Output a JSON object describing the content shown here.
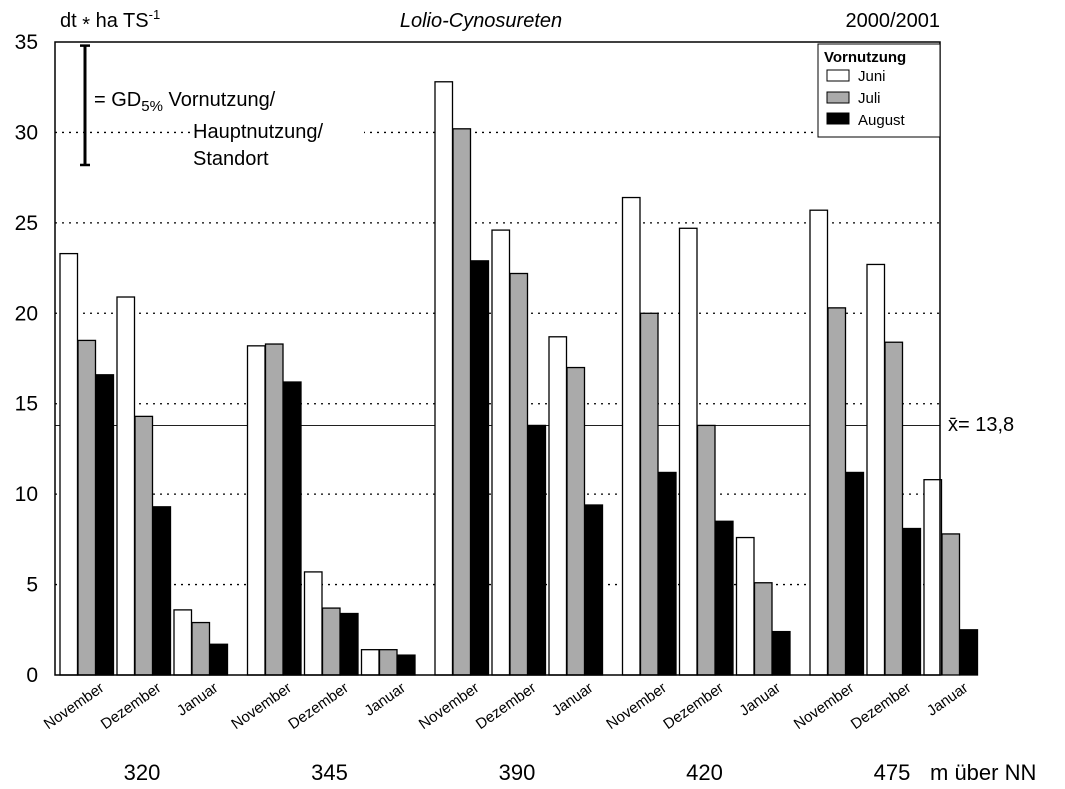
{
  "chart_data": {
    "type": "bar",
    "title": "Lolio-Cynosureten",
    "period": "2000/2001",
    "y_unit": {
      "main": "dt ",
      "times": "*",
      "rest": " ha TS",
      "sup": "-1"
    },
    "xlabel": "m über NN",
    "ylim": [
      0,
      35
    ],
    "yticks": [
      0,
      5,
      10,
      15,
      20,
      25,
      30,
      35
    ],
    "gridlines": [
      5,
      10,
      15,
      20,
      25,
      30
    ],
    "groups": [
      "320",
      "345",
      "390",
      "420",
      "475"
    ],
    "subgroups": [
      "November",
      "Dezember",
      "Januar"
    ],
    "legend": {
      "title": "Vornutzung",
      "position": "top-right"
    },
    "series": [
      {
        "name": "Juni",
        "color": "#ffffff",
        "values": [
          [
            23.3,
            20.9,
            3.6
          ],
          [
            18.2,
            5.7,
            1.4
          ],
          [
            32.8,
            24.6,
            18.7
          ],
          [
            26.4,
            24.7,
            7.6
          ],
          [
            25.7,
            22.7,
            10.8
          ]
        ]
      },
      {
        "name": "Juli",
        "color": "#aaaaaa",
        "values": [
          [
            18.5,
            14.3,
            2.9
          ],
          [
            18.3,
            3.7,
            1.4
          ],
          [
            30.2,
            22.2,
            17.0
          ],
          [
            20.0,
            13.8,
            5.1
          ],
          [
            20.3,
            18.4,
            7.8
          ]
        ]
      },
      {
        "name": "August",
        "color": "#000000",
        "values": [
          [
            16.6,
            9.3,
            1.7
          ],
          [
            16.2,
            3.4,
            1.1
          ],
          [
            22.9,
            13.8,
            9.4
          ],
          [
            11.2,
            8.5,
            2.4
          ],
          [
            11.2,
            8.1,
            2.5
          ]
        ]
      }
    ],
    "mean": {
      "value": 13.8,
      "symbol": "x̄",
      "label": "= 13,8"
    },
    "lsd": {
      "value_low": 28.2,
      "value_high": 34.8,
      "label_prefix": "= GD",
      "label_sub": "5%",
      "lines": [
        "Vornutzung/",
        "Hauptnutzung/",
        "Standort"
      ]
    }
  }
}
